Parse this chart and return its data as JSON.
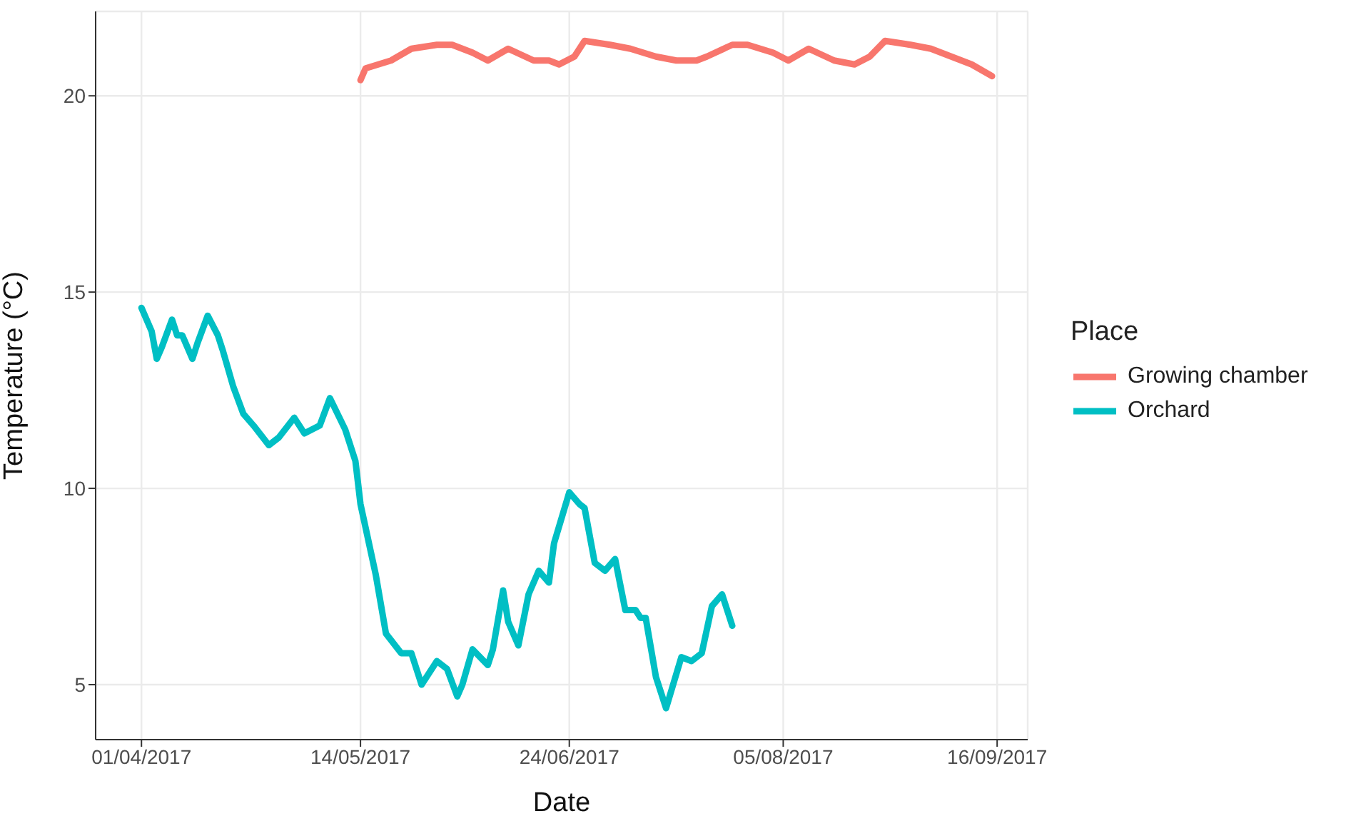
{
  "chart_data": {
    "type": "line",
    "xlabel": "Date",
    "ylabel": "Temperature (°C)",
    "legend_title": "Place",
    "legend": "right",
    "grid": true,
    "xlim": [
      "2017-03-23",
      "2017-09-22"
    ],
    "xticks": [
      {
        "value": "2017-04-01",
        "label": "01/04/2017"
      },
      {
        "value": "2017-05-14",
        "label": "14/05/2017"
      },
      {
        "value": "2017-06-24",
        "label": "24/06/2017"
      },
      {
        "value": "2017-08-05",
        "label": "05/08/2017"
      },
      {
        "value": "2017-09-16",
        "label": "16/09/2017"
      }
    ],
    "ylim": [
      3.6,
      22.15
    ],
    "yticks": [
      5,
      10,
      15,
      20
    ],
    "series": [
      {
        "name": "Growing chamber",
        "color": "#f8766d",
        "x": [
          "2017-05-14",
          "2017-05-15",
          "2017-05-20",
          "2017-05-24",
          "2017-05-29",
          "2017-06-01",
          "2017-06-05",
          "2017-06-08",
          "2017-06-12",
          "2017-06-17",
          "2017-06-20",
          "2017-06-22",
          "2017-06-25",
          "2017-06-27",
          "2017-07-02",
          "2017-07-06",
          "2017-07-11",
          "2017-07-15",
          "2017-07-19",
          "2017-07-21",
          "2017-07-26",
          "2017-07-29",
          "2017-08-03",
          "2017-08-06",
          "2017-08-10",
          "2017-08-15",
          "2017-08-19",
          "2017-08-22",
          "2017-08-25",
          "2017-08-30",
          "2017-09-03",
          "2017-09-07",
          "2017-09-11",
          "2017-09-15"
        ],
        "values": [
          20.4,
          20.7,
          20.9,
          21.2,
          21.3,
          21.3,
          21.1,
          20.9,
          21.2,
          20.9,
          20.9,
          20.8,
          21.0,
          21.4,
          21.3,
          21.2,
          21.0,
          20.9,
          20.9,
          21.0,
          21.3,
          21.3,
          21.1,
          20.9,
          21.2,
          20.9,
          20.8,
          21.0,
          21.4,
          21.3,
          21.2,
          21.0,
          20.8,
          20.5
        ]
      },
      {
        "name": "Orchard",
        "color": "#00bfc4",
        "x": [
          "2017-04-01",
          "2017-04-02",
          "2017-04-03",
          "2017-04-04",
          "2017-04-05",
          "2017-04-07",
          "2017-04-08",
          "2017-04-09",
          "2017-04-11",
          "2017-04-12",
          "2017-04-14",
          "2017-04-16",
          "2017-04-17",
          "2017-04-19",
          "2017-04-21",
          "2017-04-23",
          "2017-04-26",
          "2017-04-28",
          "2017-05-01",
          "2017-05-03",
          "2017-05-06",
          "2017-05-08",
          "2017-05-11",
          "2017-05-13",
          "2017-05-14",
          "2017-05-15",
          "2017-05-17",
          "2017-05-19",
          "2017-05-22",
          "2017-05-24",
          "2017-05-26",
          "2017-05-29",
          "2017-05-31",
          "2017-06-02",
          "2017-06-03",
          "2017-06-05",
          "2017-06-08",
          "2017-06-09",
          "2017-06-11",
          "2017-06-12",
          "2017-06-14",
          "2017-06-16",
          "2017-06-18",
          "2017-06-20",
          "2017-06-21",
          "2017-06-24",
          "2017-06-26",
          "2017-06-27",
          "2017-06-29",
          "2017-07-01",
          "2017-07-03",
          "2017-07-05",
          "2017-07-07",
          "2017-07-08",
          "2017-07-09",
          "2017-07-11",
          "2017-07-13",
          "2017-07-16",
          "2017-07-18",
          "2017-07-20",
          "2017-07-22",
          "2017-07-24",
          "2017-07-25",
          "2017-07-26"
        ],
        "values": [
          14.6,
          14.3,
          14.0,
          13.3,
          13.6,
          14.3,
          13.9,
          13.9,
          13.3,
          13.7,
          14.4,
          13.9,
          13.5,
          12.6,
          11.9,
          11.6,
          11.1,
          11.3,
          11.8,
          11.4,
          11.6,
          12.3,
          11.5,
          10.7,
          9.6,
          9.0,
          7.8,
          6.3,
          5.8,
          5.8,
          5.0,
          5.6,
          5.4,
          4.7,
          5.0,
          5.9,
          5.5,
          5.9,
          7.4,
          6.6,
          6.0,
          7.3,
          7.9,
          7.6,
          8.6,
          9.9,
          9.6,
          9.5,
          8.1,
          7.9,
          8.2,
          6.9,
          6.9,
          6.7,
          6.7,
          5.2,
          4.4,
          5.7,
          5.6,
          5.8,
          7.0,
          7.3,
          6.9,
          6.5
        ]
      }
    ]
  }
}
